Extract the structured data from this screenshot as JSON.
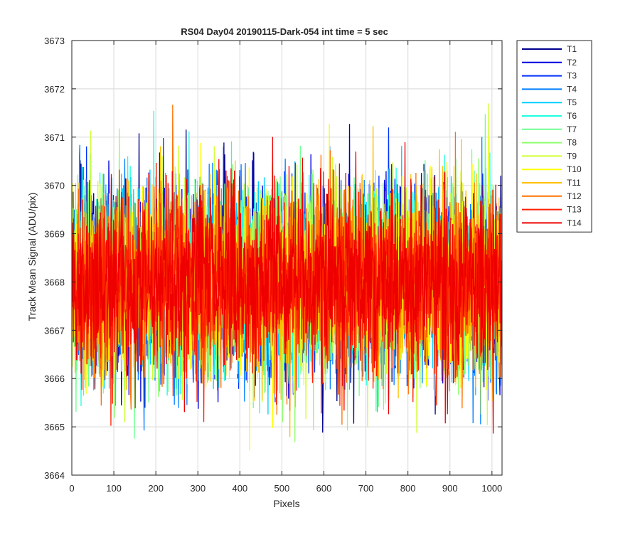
{
  "chart_data": {
    "type": "line",
    "title": "RS04 Day04 20190115-Dark-054 int time = 5 sec",
    "xlabel": "Pixels",
    "ylabel": "Track Mean Signal (ADU/pix)",
    "xlim": [
      0,
      1024
    ],
    "ylim": [
      3664,
      3673
    ],
    "x_ticks": [
      0,
      100,
      200,
      300,
      400,
      500,
      600,
      700,
      800,
      900,
      1000
    ],
    "y_ticks": [
      3664,
      3665,
      3666,
      3667,
      3668,
      3669,
      3670,
      3671,
      3672,
      3673
    ],
    "grid": true,
    "legend_position": "outside-top-right",
    "x_range": [
      1,
      1024
    ],
    "mean_level": 3668,
    "noise_std": 1.0,
    "series": [
      {
        "name": "T1",
        "color": "#00008f"
      },
      {
        "name": "T2",
        "color": "#0000df"
      },
      {
        "name": "T3",
        "color": "#0030ff"
      },
      {
        "name": "T4",
        "color": "#007fff"
      },
      {
        "name": "T5",
        "color": "#00cfff"
      },
      {
        "name": "T6",
        "color": "#20ffdf"
      },
      {
        "name": "T7",
        "color": "#70ff8f"
      },
      {
        "name": "T8",
        "color": "#8fff70"
      },
      {
        "name": "T9",
        "color": "#cfff30"
      },
      {
        "name": "T10",
        "color": "#ffff00"
      },
      {
        "name": "T11",
        "color": "#ffbf00"
      },
      {
        "name": "T12",
        "color": "#ff7000"
      },
      {
        "name": "T13",
        "color": "#ff2000"
      },
      {
        "name": "T14",
        "color": "#ef0000"
      }
    ]
  }
}
